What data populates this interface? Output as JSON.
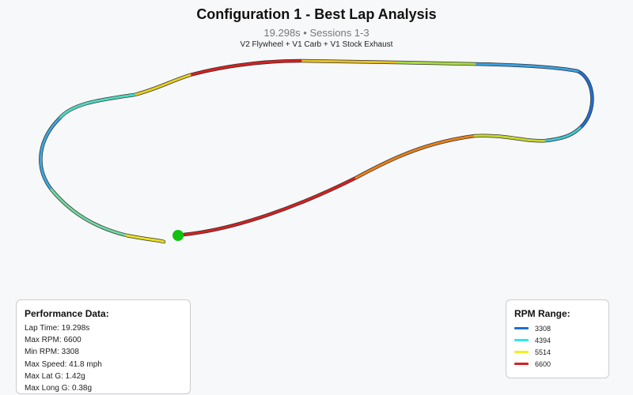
{
  "header": {
    "title": "Configuration 1 - Best Lap Analysis",
    "subtitle": "19.298s • Sessions 1-3",
    "setup": "V2 Flywheel + V1 Carb + V1 Stock Exhaust"
  },
  "performance": {
    "title": "Performance Data:",
    "items": [
      "Lap Time: 19.298s",
      "Max RPM: 6600",
      "Min RPM: 3308",
      "Max Speed: 41.8 mph",
      "Max Lat G: 1.42g",
      "Max Long G: 0.38g"
    ]
  },
  "rpm_legend": {
    "title": "RPM Range:",
    "entries": [
      {
        "label": "3308",
        "color": "#1f6fd6"
      },
      {
        "label": "4394",
        "color": "#33e6f0"
      },
      {
        "label": "5514",
        "color": "#f0f020"
      },
      {
        "label": "6600",
        "color": "#d62020"
      }
    ]
  }
}
